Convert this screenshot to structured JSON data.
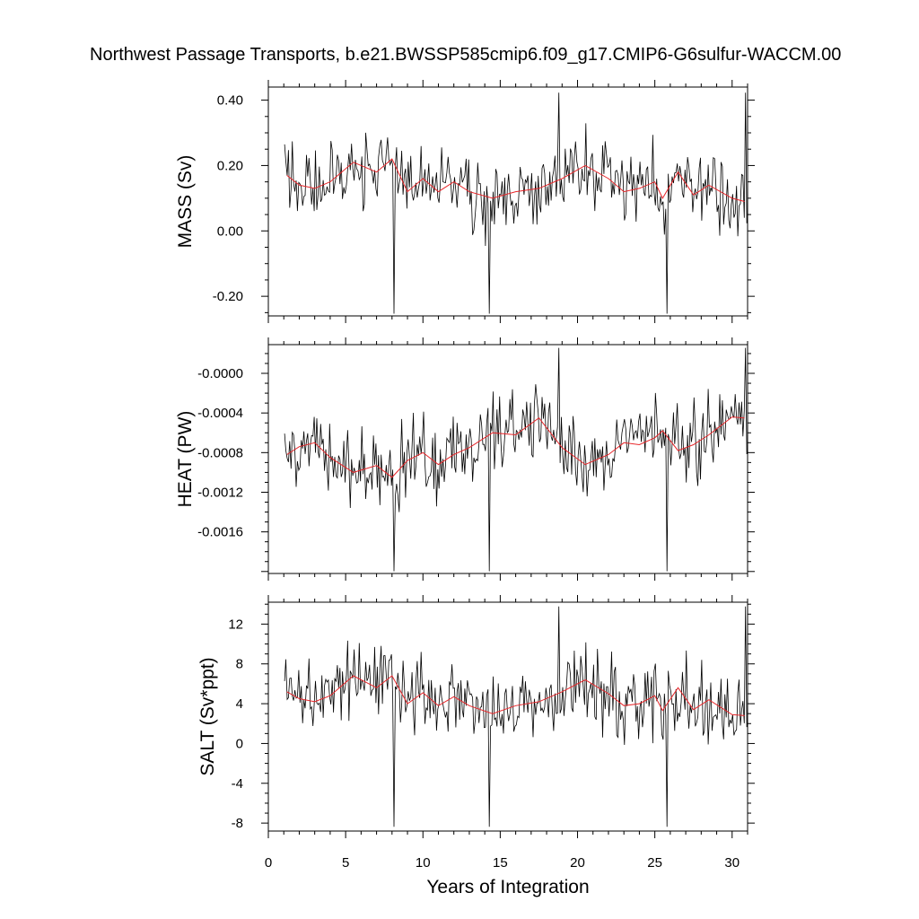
{
  "chart_data": {
    "type": "line",
    "title": "Northwest Passage Transports, b.e21.BWSSP585cmip6.f09_g17.CMIP6-G6sulfur-WACCM.00",
    "xlabel": "Years of Integration",
    "xlim": [
      0,
      31
    ],
    "xticks": [
      0,
      5,
      10,
      15,
      20,
      25,
      30
    ],
    "panels": [
      {
        "name": "mass",
        "ylabel": "MASS (Sv)",
        "ylim": [
          -0.26,
          0.44
        ],
        "yticks": [
          0.4,
          0.2,
          0.0,
          -0.2
        ],
        "ytick_labels": [
          "0.40",
          "0.20",
          "0.00",
          "-0.20"
        ],
        "annual_mean": {
          "x": [
            1.2,
            2.0,
            3.0,
            4.0,
            5.5,
            7.0,
            8.0,
            9.0,
            10.0,
            11.0,
            12.0,
            13.0,
            14.5,
            16.0,
            17.5,
            19.0,
            20.5,
            22.0,
            23.0,
            24.0,
            25.0,
            25.5,
            26.5,
            27.5,
            28.5,
            30.0,
            30.8
          ],
          "y": [
            0.17,
            0.14,
            0.13,
            0.15,
            0.21,
            0.18,
            0.22,
            0.12,
            0.16,
            0.12,
            0.15,
            0.12,
            0.1,
            0.12,
            0.13,
            0.16,
            0.2,
            0.16,
            0.12,
            0.13,
            0.15,
            0.1,
            0.18,
            0.11,
            0.14,
            0.1,
            0.09
          ]
        },
        "monthly_range": [
          -0.26,
          0.43
        ]
      },
      {
        "name": "heat",
        "ylabel": "HEAT (PW)",
        "ylim": [
          -0.00202,
          0.00029
        ],
        "yticks": [
          0.0,
          -0.0004,
          -0.0008,
          -0.0012,
          -0.0016
        ],
        "ytick_labels": [
          "-0.0000",
          "-0.0004",
          "-0.0008",
          "-0.0012",
          "-0.0016"
        ],
        "annual_mean": {
          "x": [
            1.2,
            2.0,
            3.0,
            4.0,
            5.5,
            7.0,
            8.0,
            9.0,
            10.0,
            11.0,
            12.0,
            13.0,
            14.5,
            16.0,
            17.5,
            19.0,
            20.5,
            22.0,
            23.0,
            24.0,
            25.0,
            25.5,
            26.5,
            27.5,
            28.5,
            30.0,
            30.8
          ],
          "y": [
            -0.00082,
            -0.00074,
            -0.0007,
            -0.00085,
            -0.001,
            -0.00093,
            -0.00105,
            -0.00088,
            -0.0008,
            -0.00092,
            -0.00082,
            -0.00075,
            -0.0006,
            -0.00062,
            -0.00045,
            -0.00075,
            -0.00092,
            -0.00082,
            -0.0007,
            -0.00072,
            -0.00065,
            -0.00058,
            -0.00078,
            -0.00072,
            -0.00062,
            -0.00044,
            -0.00045
          ]
        },
        "monthly_range": [
          -0.00202,
          0.00028
        ]
      },
      {
        "name": "salt",
        "ylabel": "SALT (Sv*ppt)",
        "ylim": [
          -8.8,
          14.2
        ],
        "yticks": [
          12,
          8,
          4,
          0,
          -4,
          -8
        ],
        "ytick_labels": [
          "12",
          "8",
          "4",
          "0",
          "-4",
          "-8"
        ],
        "annual_mean": {
          "x": [
            1.2,
            2.0,
            3.0,
            4.0,
            5.5,
            7.0,
            8.0,
            9.0,
            10.0,
            11.0,
            12.0,
            13.0,
            14.5,
            16.0,
            17.5,
            19.0,
            20.5,
            22.0,
            23.0,
            24.0,
            25.0,
            25.5,
            26.5,
            27.5,
            28.5,
            30.0,
            30.8
          ],
          "y": [
            5.2,
            4.5,
            4.2,
            4.8,
            6.8,
            5.6,
            6.8,
            4.0,
            5.1,
            3.8,
            4.7,
            3.8,
            3.0,
            3.8,
            4.2,
            5.2,
            6.4,
            5.0,
            3.8,
            4.0,
            4.8,
            3.3,
            5.6,
            3.4,
            4.4,
            2.9,
            2.8
          ]
        },
        "monthly_range": [
          -8.6,
          14.0
        ]
      }
    ],
    "series": [
      {
        "color": "#000000",
        "role": "monthly"
      },
      {
        "color": "#e8262a",
        "role": "annual mean"
      }
    ]
  }
}
